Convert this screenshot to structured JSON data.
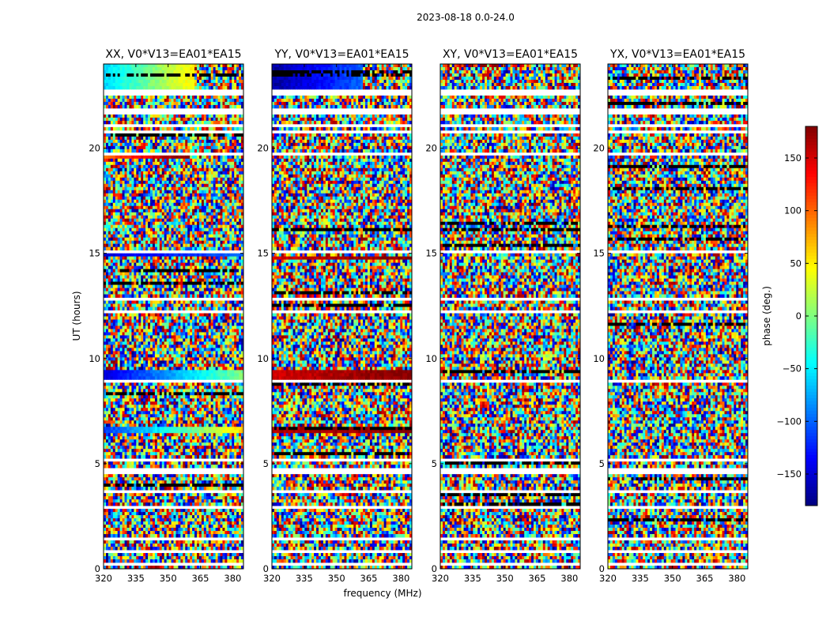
{
  "figure": {
    "suptitle": "2023-08-18 0.0-24.0"
  },
  "chart_data": {
    "type": "heatmap",
    "value_quantity": "phase (deg.)",
    "xlabel": "frequency (MHz)",
    "ylabel": "UT (hours)",
    "xlim": [
      320,
      385
    ],
    "ylim": [
      0,
      24
    ],
    "xticks": [
      320,
      335,
      350,
      365,
      380
    ],
    "yticks": [
      0,
      5,
      10,
      15,
      20
    ],
    "panels": [
      {
        "name": "XX",
        "title": "XX, V0*V13=EA01*EA15"
      },
      {
        "name": "YY",
        "title": "YY, V0*V13=EA01*EA15"
      },
      {
        "name": "XY",
        "title": "XY, V0*V13=EA01*EA15"
      },
      {
        "name": "YX",
        "title": "YX, V0*V13=EA01*EA15"
      }
    ],
    "colorbar": {
      "label": "phase (deg.)",
      "range": [
        -180,
        180
      ],
      "ticks": [
        -150,
        -100,
        -50,
        0,
        50,
        100,
        150
      ],
      "tick_labels": [
        "−150",
        "−100",
        "−50",
        "0",
        "50",
        "100",
        "150"
      ],
      "colormap": "jet"
    },
    "flagged_ut_ranges_hours": [
      [
        0.1,
        0.3
      ],
      [
        0.8,
        0.95
      ],
      [
        1.3,
        1.55
      ],
      [
        2.9,
        3.05
      ],
      [
        3.55,
        3.7
      ],
      [
        4.5,
        4.85
      ],
      [
        5.1,
        5.2
      ],
      [
        8.9,
        9.0
      ],
      [
        12.1,
        12.3
      ],
      [
        12.75,
        12.9
      ],
      [
        15.0,
        15.12
      ],
      [
        16.6,
        16.7
      ],
      [
        19.0,
        19.1
      ],
      [
        19.7,
        19.8
      ],
      [
        20.65,
        20.8
      ],
      [
        21.0,
        21.15
      ],
      [
        21.6,
        21.85
      ],
      [
        22.15,
        22.25
      ],
      [
        22.45,
        22.6
      ],
      [
        22.65,
        22.8
      ]
    ],
    "coherent_regions": [
      {
        "panel": "XX",
        "ut_range": [
          22.8,
          24.0
        ],
        "freq_range": [
          320,
          362
        ],
        "phase_deg": [
          -60,
          50
        ],
        "note": "smooth gradient, cyan to yellow"
      },
      {
        "panel": "YY",
        "ut_range": [
          22.8,
          24.0
        ],
        "freq_range": [
          320,
          362
        ],
        "phase_deg": [
          -170,
          -100
        ],
        "note": "blue / dark blue"
      },
      {
        "panel": "XX",
        "ut_range": [
          6.4,
          6.8
        ],
        "freq_range": [
          320,
          385
        ],
        "phase_deg": [
          -120,
          60
        ],
        "note": "blue to yellow band"
      },
      {
        "panel": "YY",
        "ut_range": [
          6.4,
          6.8
        ],
        "freq_range": [
          320,
          385
        ],
        "phase_deg": [
          160,
          180
        ],
        "note": "dark red band"
      },
      {
        "panel": "XX",
        "ut_range": [
          9.0,
          9.4
        ],
        "freq_range": [
          320,
          385
        ],
        "phase_deg": [
          -150,
          0
        ],
        "note": "blue band"
      },
      {
        "panel": "YY",
        "ut_range": [
          9.0,
          9.4
        ],
        "freq_range": [
          320,
          385
        ],
        "phase_deg": [
          150,
          180
        ],
        "note": "red band"
      },
      {
        "panel": "XX",
        "ut_range": [
          14.8,
          15.0
        ],
        "freq_range": [
          320,
          385
        ],
        "phase_deg": [
          -150,
          -100
        ],
        "note": "blue band"
      },
      {
        "panel": "YY",
        "ut_range": [
          14.7,
          14.9
        ],
        "freq_range": [
          320,
          385
        ],
        "phase_deg": [
          150,
          180
        ],
        "note": "red band"
      },
      {
        "panel": "XX",
        "ut_range": [
          19.5,
          19.7
        ],
        "freq_range": [
          320,
          360
        ],
        "phase_deg": [
          100,
          180
        ],
        "note": "red/orange streak"
      },
      {
        "panel": "XX",
        "ut_range": [
          21.7,
          21.9
        ],
        "freq_range": [
          320,
          360
        ],
        "phase_deg": [
          -150,
          150
        ],
        "note": "red to blue streak"
      }
    ]
  }
}
